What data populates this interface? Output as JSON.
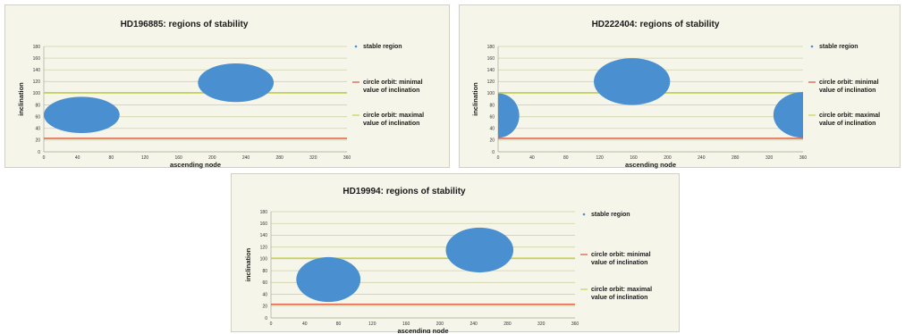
{
  "colors": {
    "stable": "#4a90d0",
    "min_line": "#d9533b",
    "max_line": "#c8d24c",
    "grid": "#cfd3a6"
  },
  "chart_data": [
    {
      "type": "scatter",
      "title": "HD196885: regions of stability",
      "xlabel": "ascending node",
      "ylabel": "inclination",
      "xlim": [
        0,
        360
      ],
      "ylim": [
        0,
        180
      ],
      "xticks": [
        0,
        40,
        80,
        120,
        160,
        200,
        240,
        280,
        320,
        360
      ],
      "yticks": [
        0,
        20,
        40,
        60,
        80,
        100,
        120,
        140,
        160,
        180
      ],
      "grid": true,
      "legend_position": "right",
      "legend": [
        "stable region",
        "circle orbit: minimal value of inclination",
        "circle orbit: maximal value of inclination"
      ],
      "stable_regions": [
        {
          "center": [
            45,
            63
          ],
          "radius": [
            45,
            31
          ]
        },
        {
          "center": [
            228,
            118
          ],
          "radius": [
            45,
            33
          ]
        }
      ],
      "min_inclination": 23,
      "max_inclination": 101
    },
    {
      "type": "scatter",
      "title": "HD222404: regions of stability",
      "xlabel": "ascending node",
      "ylabel": "inclination",
      "xlim": [
        0,
        360
      ],
      "ylim": [
        0,
        180
      ],
      "xticks": [
        0,
        40,
        80,
        120,
        160,
        200,
        240,
        280,
        320,
        360
      ],
      "yticks": [
        0,
        20,
        40,
        60,
        80,
        100,
        120,
        140,
        160,
        180
      ],
      "grid": true,
      "legend_position": "right",
      "legend": [
        "stable region",
        "circle orbit: minimal value of inclination",
        "circle orbit: maximal value of inclination"
      ],
      "stable_regions": [
        {
          "center": [
            0,
            62
          ],
          "radius": [
            25,
            38
          ]
        },
        {
          "center": [
            158,
            120
          ],
          "radius": [
            45,
            40
          ]
        },
        {
          "center": [
            360,
            63
          ],
          "radius": [
            35,
            39
          ]
        }
      ],
      "min_inclination": 23,
      "max_inclination": 101
    },
    {
      "type": "scatter",
      "title": "HD19994: regions of stability",
      "xlabel": "ascending node",
      "ylabel": "inclination",
      "xlim": [
        0,
        360
      ],
      "ylim": [
        0,
        180
      ],
      "xticks": [
        0,
        40,
        80,
        120,
        160,
        200,
        240,
        280,
        320,
        360
      ],
      "yticks": [
        0,
        20,
        40,
        60,
        80,
        100,
        120,
        140,
        160,
        180
      ],
      "grid": true,
      "legend_position": "right",
      "legend": [
        "stable region",
        "circle orbit: minimal value of inclination",
        "circle orbit: maximal value of inclination"
      ],
      "stable_regions": [
        {
          "center": [
            68,
            65
          ],
          "radius": [
            38,
            38
          ]
        },
        {
          "center": [
            247,
            115
          ],
          "radius": [
            40,
            38
          ]
        }
      ],
      "min_inclination": 23,
      "max_inclination": 101
    }
  ]
}
